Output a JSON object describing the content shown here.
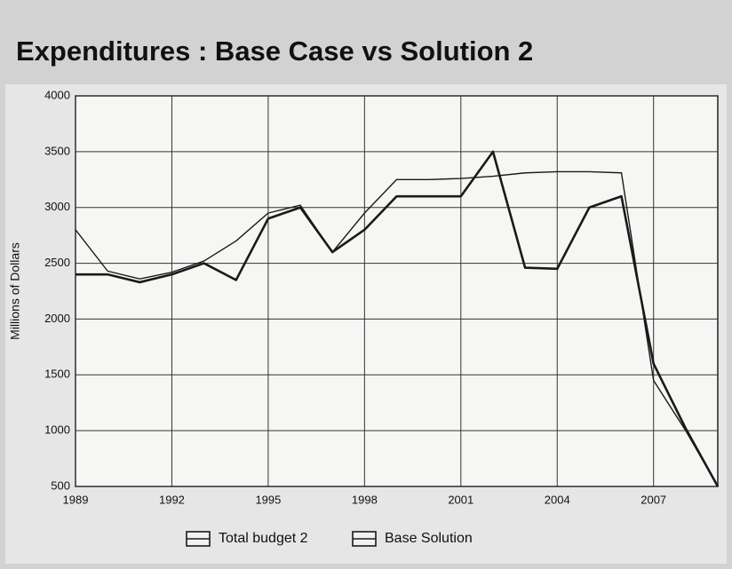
{
  "chart_data": {
    "type": "line",
    "title": "Expenditures : Base Case vs Solution 2",
    "y_label": "Millions of Dollars",
    "x": [
      1989,
      1990,
      1991,
      1992,
      1993,
      1994,
      1995,
      1996,
      1997,
      1998,
      1999,
      2000,
      2001,
      2002,
      2003,
      2004,
      2005,
      2006,
      2007,
      2008,
      2009
    ],
    "series": [
      {
        "name": "Total budget 2",
        "color": "#1a1a1a",
        "values": [
          2400,
          2400,
          2330,
          2400,
          2500,
          2350,
          2900,
          3000,
          2600,
          2800,
          3100,
          3100,
          3100,
          3500,
          2460,
          2450,
          3000,
          3100,
          1600,
          1020,
          500
        ]
      },
      {
        "name": "Base Solution",
        "color": "#1a1a1a",
        "values": [
          2800,
          2430,
          2360,
          2420,
          2520,
          2700,
          2950,
          3020,
          2600,
          2950,
          3250,
          3250,
          3260,
          3280,
          3310,
          3320,
          3320,
          3310,
          1450,
          1000,
          500
        ]
      }
    ],
    "xlim": [
      1989,
      2009
    ],
    "xticks": [
      1989,
      1992,
      1995,
      1998,
      2001,
      2004,
      2007
    ],
    "ylim": [
      500,
      4000
    ],
    "yticks": [
      500,
      1000,
      1500,
      2000,
      2500,
      3000,
      3500,
      4000
    ],
    "grid": true
  }
}
